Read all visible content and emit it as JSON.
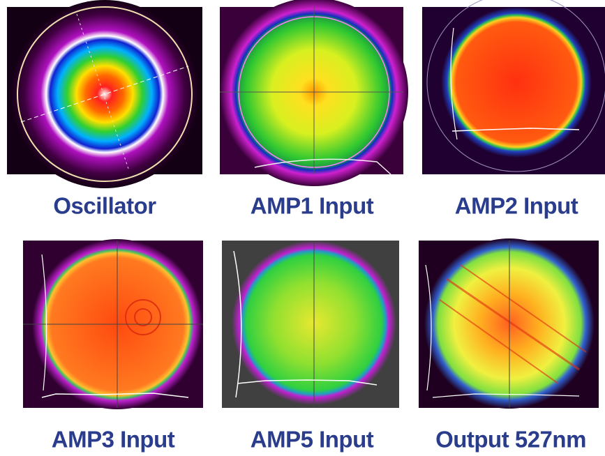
{
  "panels": [
    {
      "label": "Oscillator"
    },
    {
      "label": "AMP1 Input"
    },
    {
      "label": "AMP2 Input"
    },
    {
      "label": "AMP3 Input"
    },
    {
      "label": "AMP5 Input"
    },
    {
      "label": "Output 527nm"
    }
  ]
}
